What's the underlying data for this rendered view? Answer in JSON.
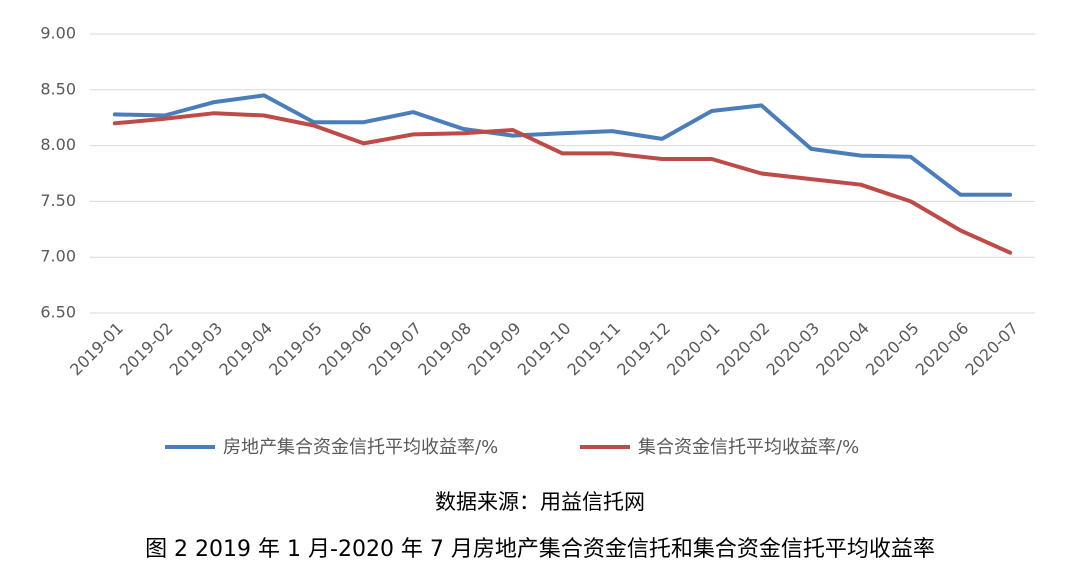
{
  "chart_data": {
    "type": "line",
    "categories": [
      "2019-01",
      "2019-02",
      "2019-03",
      "2019-04",
      "2019-05",
      "2019-06",
      "2019-07",
      "2019-08",
      "2019-09",
      "2019-10",
      "2019-11",
      "2019-12",
      "2020-01",
      "2020-02",
      "2020-03",
      "2020-04",
      "2020-05",
      "2020-06",
      "2020-07"
    ],
    "series": [
      {
        "name": "房地产集合资金信托平均收益率/%",
        "color": "#4a7ebb",
        "values": [
          8.28,
          8.27,
          8.39,
          8.45,
          8.21,
          8.21,
          8.3,
          8.15,
          8.09,
          8.11,
          8.13,
          8.06,
          8.31,
          8.36,
          7.97,
          7.91,
          7.9,
          7.56,
          7.56
        ]
      },
      {
        "name": "集合资金信托平均收益率/%",
        "color": "#be4b48",
        "values": [
          8.2,
          8.24,
          8.29,
          8.27,
          8.18,
          8.02,
          8.1,
          8.11,
          8.14,
          7.93,
          7.93,
          7.88,
          7.88,
          7.75,
          7.7,
          7.65,
          7.5,
          7.24,
          7.04
        ]
      }
    ],
    "ylim": [
      6.5,
      9.0
    ],
    "yticks": [
      {
        "value": 6.5,
        "label": "6.50"
      },
      {
        "value": 7,
        "label": "7.00"
      },
      {
        "value": 7.5,
        "label": "7.50"
      },
      {
        "value": 8,
        "label": "8.00"
      },
      {
        "value": 8.5,
        "label": "8.50"
      },
      {
        "value": 9,
        "label": "9.00"
      }
    ],
    "grid": true,
    "legend": "bottom",
    "source": "数据来源：用益信托网",
    "caption": "图 2 2019 年 1 月-2020 年 7 月房地产集合资金信托和集合资金信托平均收益率"
  }
}
